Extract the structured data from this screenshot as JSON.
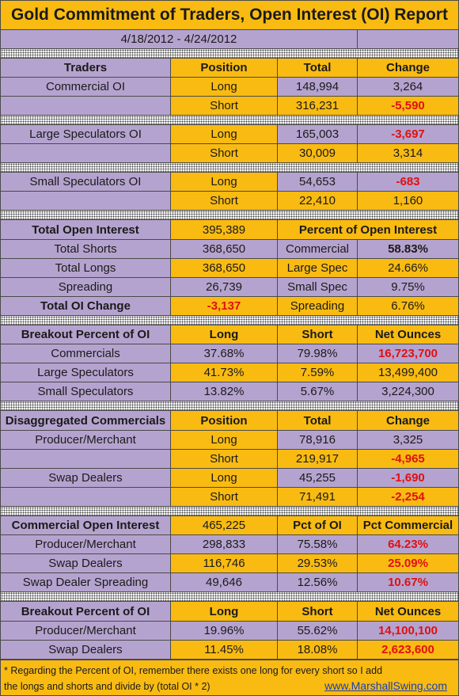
{
  "title": "Gold Commitment of Traders, Open Interest (OI) Report",
  "date_range": "4/18/2012 - 4/24/2012",
  "chart_data": {
    "type": "table",
    "sections": [
      {
        "id": "traders",
        "header": [
          "Traders",
          "Position",
          "Total",
          "Change"
        ],
        "rows": [
          [
            "Commercial OI",
            "Long",
            "148,994",
            "3,264"
          ],
          [
            "",
            "Short",
            "316,231",
            "-5,590"
          ]
        ]
      },
      {
        "id": "large",
        "rows": [
          [
            "Large Speculators OI",
            "Long",
            "165,003",
            "-3,697"
          ],
          [
            "",
            "Short",
            "30,009",
            "3,314"
          ]
        ]
      },
      {
        "id": "small",
        "rows": [
          [
            "Small Speculators OI",
            "Long",
            "54,653",
            "-683"
          ],
          [
            "",
            "Short",
            "22,410",
            "1,160"
          ]
        ]
      },
      {
        "id": "open_interest",
        "header": [
          "Total Open Interest",
          "395,389",
          "Percent of Open Interest",
          ""
        ],
        "rows": [
          [
            "Total Shorts",
            "368,650",
            "Commercial",
            "58.83%"
          ],
          [
            "Total Longs",
            "368,650",
            "Large Spec",
            "24.66%"
          ],
          [
            "Spreading",
            "26,739",
            "Small Spec",
            "9.75%"
          ],
          [
            "Total OI Change",
            "-3,137",
            "Spreading",
            "6.76%"
          ]
        ]
      },
      {
        "id": "breakout1",
        "header": [
          "Breakout Percent of OI",
          "Long",
          "Short",
          "Net Ounces"
        ],
        "rows": [
          [
            "Commercials",
            "37.68%",
            "79.98%",
            "16,723,700"
          ],
          [
            "Large Speculators",
            "41.73%",
            "7.59%",
            "13,499,400"
          ],
          [
            "Small Speculators",
            "13.82%",
            "5.67%",
            "3,224,300"
          ]
        ]
      },
      {
        "id": "disaggregated",
        "header": [
          "Disaggregated Commercials",
          "Position",
          "Total",
          "Change"
        ],
        "rows": [
          [
            "Producer/Merchant",
            "Long",
            "78,916",
            "3,325"
          ],
          [
            "",
            "Short",
            "219,917",
            "-4,965"
          ],
          [
            "Swap Dealers",
            "Long",
            "45,255",
            "-1,690"
          ],
          [
            "",
            "Short",
            "71,491",
            "-2,254"
          ]
        ]
      },
      {
        "id": "commercial_oi",
        "header": [
          "Commercial Open Interest",
          "465,225",
          "Pct of OI",
          "Pct Commercial"
        ],
        "rows": [
          [
            "Producer/Merchant",
            "298,833",
            "75.58%",
            "64.23%"
          ],
          [
            "Swap Dealers",
            "116,746",
            "29.53%",
            "25.09%"
          ],
          [
            "Swap Dealer Spreading",
            "49,646",
            "12.56%",
            "10.67%"
          ]
        ]
      },
      {
        "id": "breakout2",
        "header": [
          "Breakout Percent of OI",
          "Long",
          "Short",
          "Net Ounces"
        ],
        "rows": [
          [
            "Producer/Merchant",
            "19.96%",
            "55.62%",
            "14,100,100"
          ],
          [
            "Swap Dealers",
            "11.45%",
            "18.08%",
            "2,623,600"
          ]
        ]
      }
    ]
  },
  "footnote": {
    "line1": "* Regarding the Percent of OI, remember there exists one long for every short so I add",
    "line2": "the longs and shorts and divide by (total OI * 2)",
    "website": "www.MarshallSwing.com"
  },
  "colors": {
    "gold": "#f9bb12",
    "lavender": "#b5a3cf",
    "negative": "#e01010"
  }
}
